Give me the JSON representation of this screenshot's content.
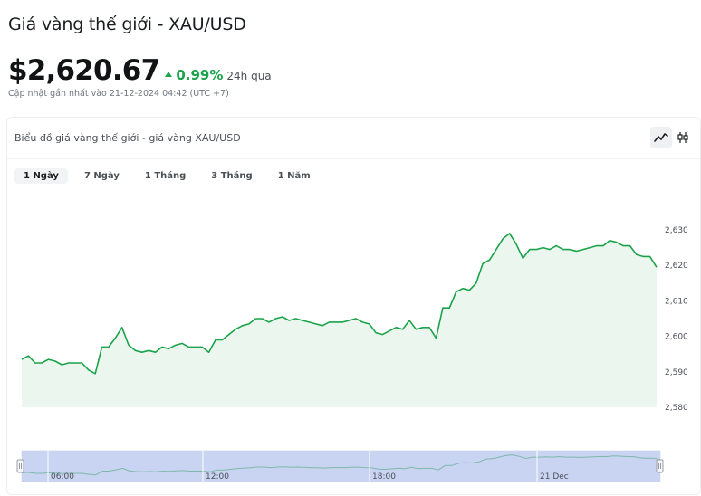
{
  "page": {
    "title": "Giá vàng thế giới - XAU/USD",
    "price": "$2,620.67",
    "change_pct": "0.99%",
    "change_period": "24h qua",
    "updated": "Cập nhật gần nhất vào 21-12-2024 04:42 (UTC +7)"
  },
  "card": {
    "title": "Biểu đồ giá vàng thế giới - giá vàng XAU/USD",
    "tabs": [
      {
        "label": "1 Ngày",
        "active": true
      },
      {
        "label": "7 Ngày",
        "active": false
      },
      {
        "label": "1 Tháng",
        "active": false
      },
      {
        "label": "3 Tháng",
        "active": false
      },
      {
        "label": "1 Năm",
        "active": false
      }
    ],
    "chart_types": [
      {
        "icon": "line-chart-icon",
        "active": true
      },
      {
        "icon": "candlestick-chart-icon",
        "active": false
      }
    ]
  },
  "colors": {
    "line": "#1aa34a",
    "area": "#eaf6ee",
    "navigator_fill": "#c9d3f2",
    "navigator_line": "#7eb9ac"
  },
  "chart_data": {
    "type": "area",
    "title": "",
    "xlabel": "",
    "ylabel": "",
    "ylim": [
      2580,
      2630
    ],
    "yticks": [
      "2,630",
      "2,620",
      "2,610",
      "2,600",
      "2,590",
      "2,580"
    ],
    "navigator_labels": [
      "06:00",
      "12:00",
      "18:00",
      "21 Dec"
    ],
    "values": [
      2593.5,
      2594.5,
      2592.5,
      2592.5,
      2593.5,
      2593,
      2592,
      2592.5,
      2592.5,
      2592.5,
      2590.5,
      2589.5,
      2597,
      2597,
      2599.5,
      2602.5,
      2597.5,
      2596,
      2595.5,
      2596,
      2595.5,
      2597,
      2596.5,
      2597.5,
      2598,
      2597,
      2597,
      2597,
      2595.5,
      2599,
      2599,
      2600.5,
      2602,
      2603,
      2603.5,
      2605,
      2605,
      2604,
      2605,
      2605.5,
      2604.5,
      2605,
      2604.5,
      2604,
      2603.5,
      2603,
      2604,
      2604,
      2604,
      2604.5,
      2605,
      2604,
      2603.5,
      2601,
      2600.5,
      2601.5,
      2602.5,
      2602,
      2604.5,
      2602,
      2602.5,
      2602.5,
      2599.5,
      2608,
      2608,
      2612.5,
      2613.5,
      2613,
      2615,
      2620.5,
      2621.5,
      2624.5,
      2627.5,
      2629,
      2626,
      2622,
      2624.5,
      2624.5,
      2625,
      2624.5,
      2625.5,
      2624.5,
      2624.5,
      2624,
      2624.5,
      2625,
      2625.5,
      2625.5,
      2627,
      2626.5,
      2625.5,
      2625.5,
      2623,
      2622.5,
      2622.5,
      2619.5
    ]
  }
}
